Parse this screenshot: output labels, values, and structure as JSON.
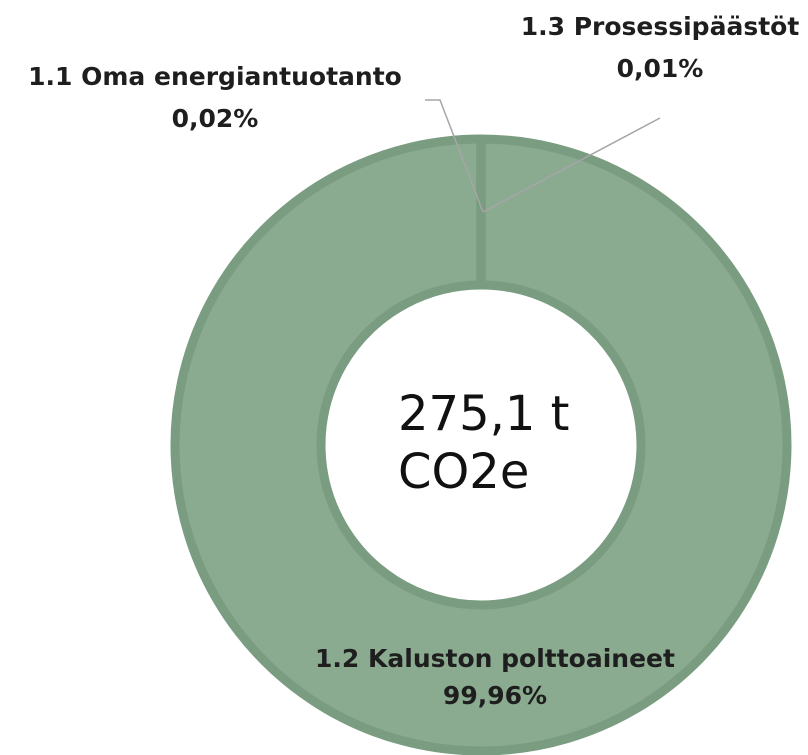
{
  "chart_data": {
    "type": "donut",
    "categories": [
      "1.1 Oma energiantuotanto",
      "1.2 Kaluston polttoaineet",
      "1.3 Prosessipäästöt"
    ],
    "values": [
      0.02,
      99.96,
      0.01
    ],
    "value_labels": [
      "0,02%",
      "99,96%",
      "0,01%"
    ],
    "color": "#8aab8f",
    "center_text": "275,1 t CO2e"
  }
}
